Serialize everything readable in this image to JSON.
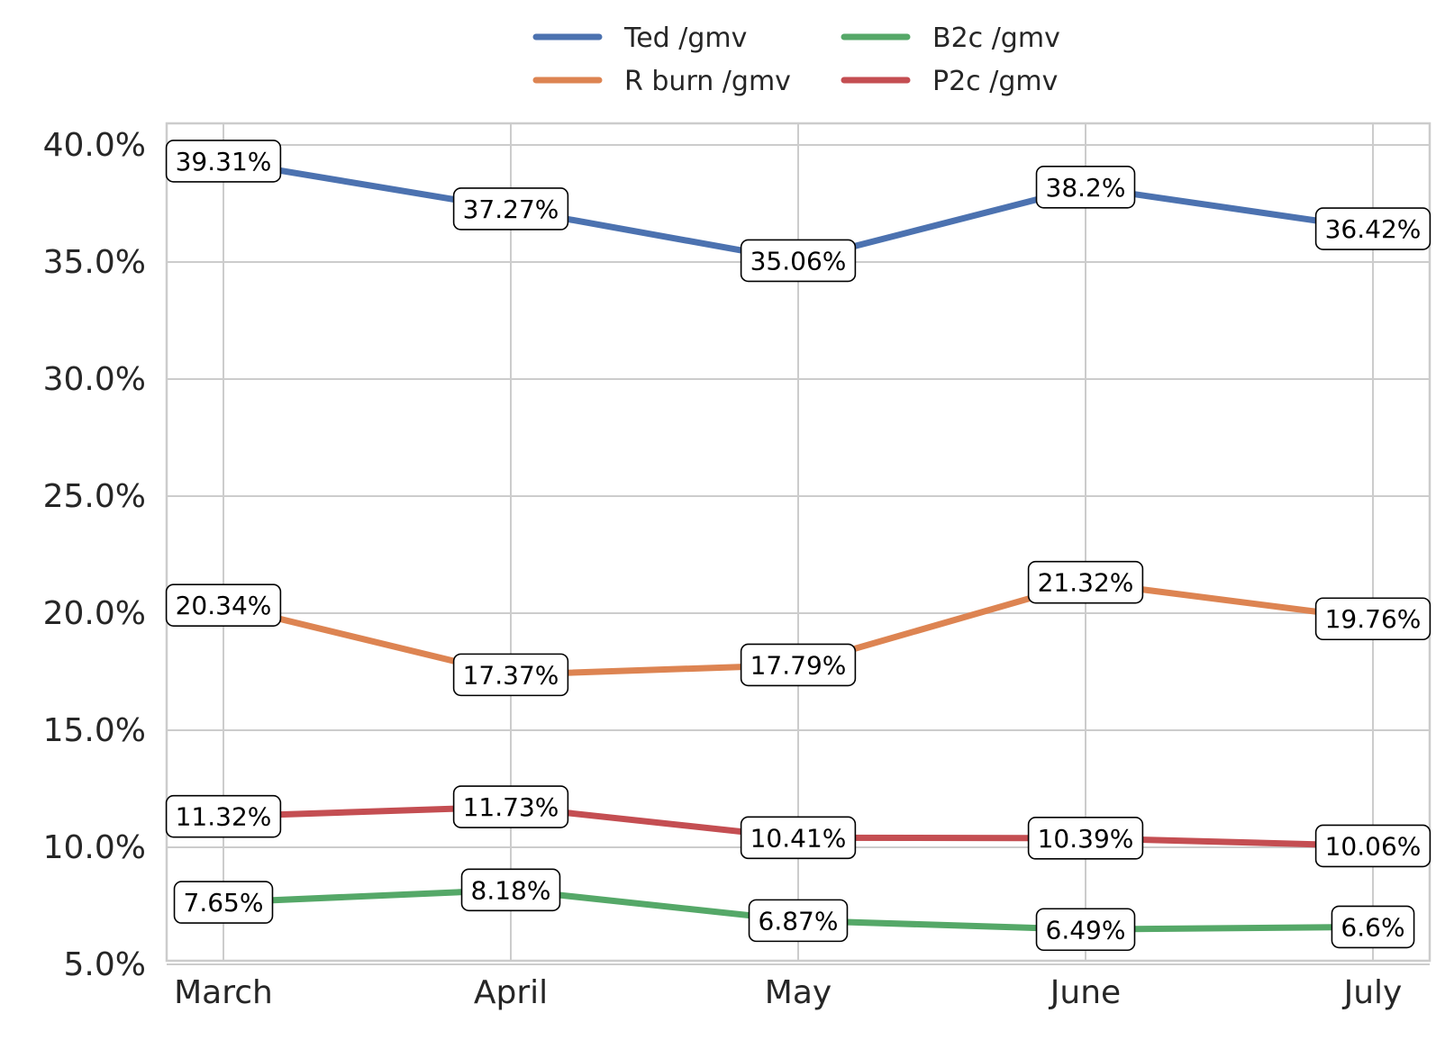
{
  "chart_data": {
    "type": "line",
    "title": "",
    "xlabel": "",
    "ylabel": "",
    "categories": [
      "March",
      "April",
      "May",
      "June",
      "July"
    ],
    "ylim": [
      5,
      41
    ],
    "yticks": [
      5,
      10,
      15,
      20,
      25,
      30,
      35,
      40
    ],
    "ytick_labels": [
      "5.0%",
      "10.0%",
      "15.0%",
      "20.0%",
      "25.0%",
      "30.0%",
      "35.0%",
      "40.0%"
    ],
    "grid": true,
    "legend": {
      "placement": "top-center",
      "columns": 2
    },
    "series": [
      {
        "name": "Ted /gmv",
        "color": "#4c72b0",
        "values": [
          39.31,
          37.27,
          35.06,
          38.2,
          36.42
        ],
        "labels": [
          "39.31%",
          "37.27%",
          "35.06%",
          "38.2%",
          "36.42%"
        ]
      },
      {
        "name": "R burn /gmv",
        "color": "#dd8452",
        "values": [
          20.34,
          17.37,
          17.79,
          21.32,
          19.76
        ],
        "labels": [
          "20.34%",
          "17.37%",
          "17.79%",
          "21.32%",
          "19.76%"
        ]
      },
      {
        "name": "B2c /gmv",
        "color": "#55a868",
        "values": [
          7.65,
          8.18,
          6.87,
          6.49,
          6.6
        ],
        "labels": [
          "7.65%",
          "8.18%",
          "6.87%",
          "6.49%",
          "6.6%"
        ]
      },
      {
        "name": "P2c /gmv",
        "color": "#c44e52",
        "values": [
          11.32,
          11.73,
          10.41,
          10.39,
          10.06
        ],
        "labels": [
          "11.32%",
          "11.73%",
          "10.41%",
          "10.39%",
          "10.06%"
        ]
      }
    ]
  }
}
